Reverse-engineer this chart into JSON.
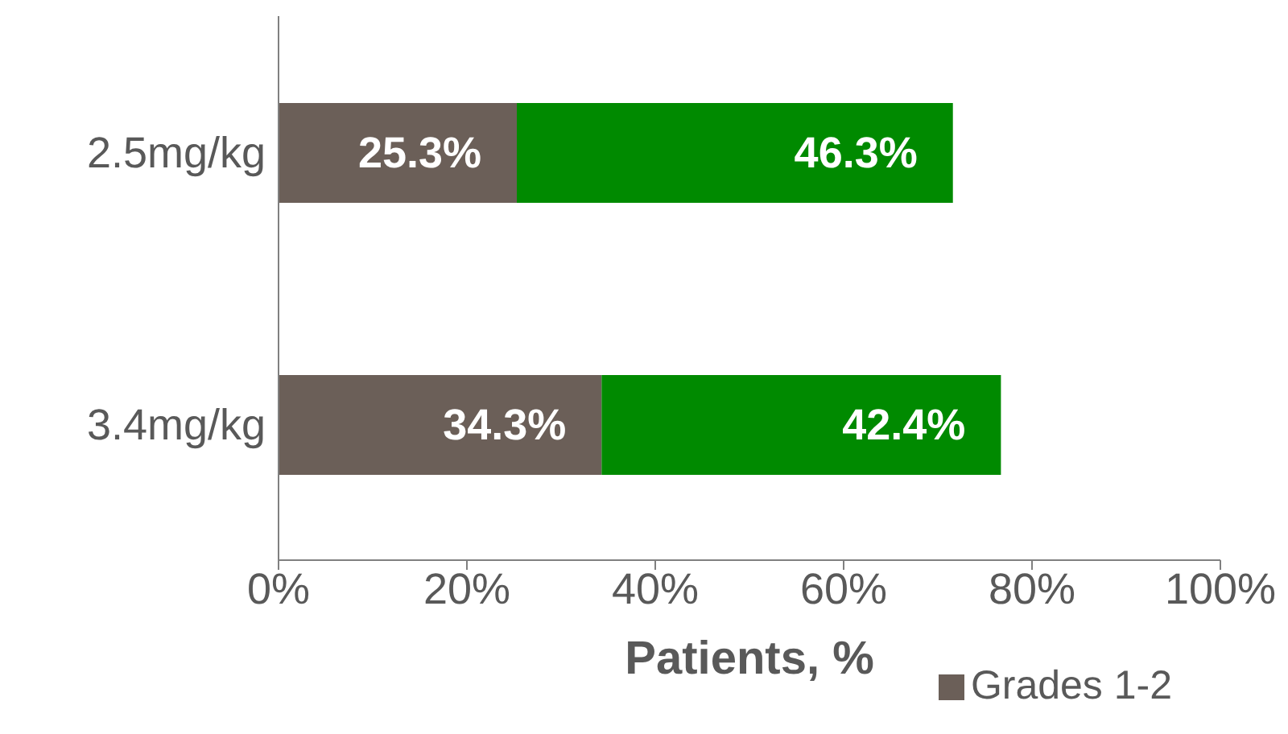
{
  "chart_data": {
    "type": "bar",
    "orientation": "horizontal",
    "stacked": true,
    "xlabel": "Patients, %",
    "categories": [
      "2.5mg/kg",
      "3.4mg/kg"
    ],
    "series": [
      {
        "name": "Grades 1-2",
        "color": "#6b5f58",
        "values": [
          25.3,
          34.3
        ],
        "value_labels": [
          "25.3%",
          "34.3%"
        ]
      },
      {
        "color": "#008a00",
        "values": [
          46.3,
          42.4
        ],
        "value_labels": [
          "46.3%",
          "42.4%"
        ]
      }
    ],
    "xlim": [
      0,
      100
    ],
    "xticks": [
      {
        "value": 0,
        "label": "0%"
      },
      {
        "value": 20,
        "label": "20%"
      },
      {
        "value": 40,
        "label": "40%"
      },
      {
        "value": 60,
        "label": "60%"
      },
      {
        "value": 80,
        "label": "80%"
      },
      {
        "value": 100,
        "label": "100%"
      }
    ],
    "grid": false,
    "legend": "bottom right"
  }
}
